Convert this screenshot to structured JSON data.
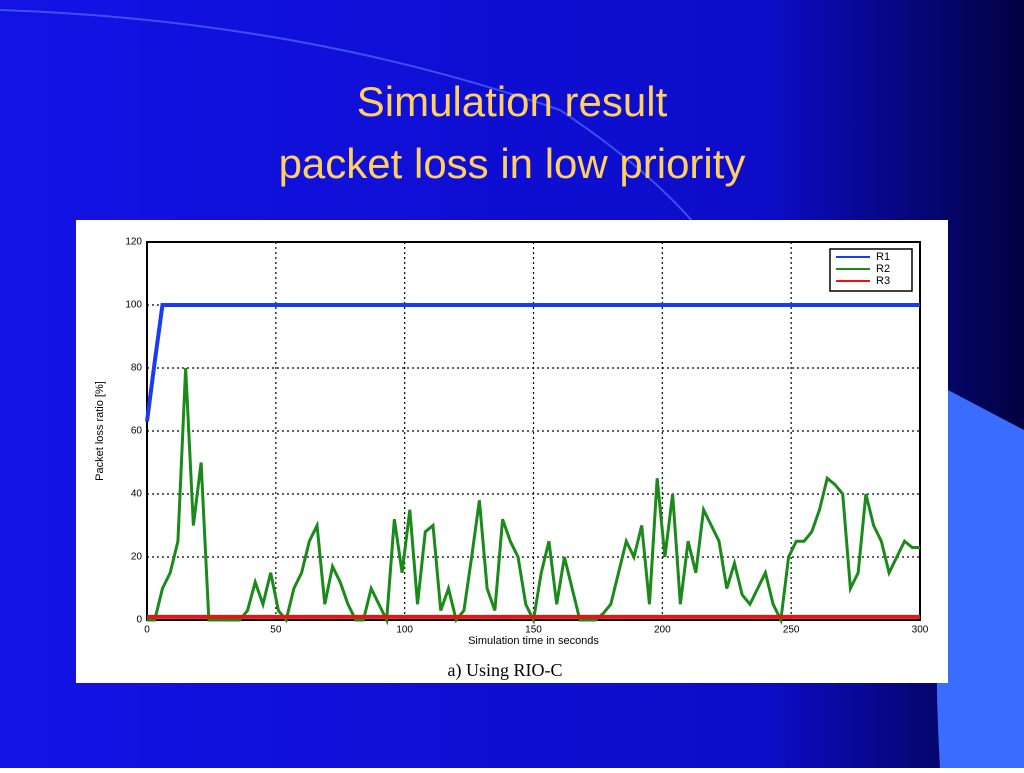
{
  "chart_data": {
    "type": "line",
    "title": "Simulation result",
    "subtitle": "packet loss in low priority",
    "caption": "a) Using RIO-C",
    "x_label": "Simulation time in seconds",
    "y_label": "Packet loss ratio [%]",
    "xlim": [
      0,
      300
    ],
    "ylim": [
      0,
      120
    ],
    "xticks": [
      0,
      50,
      100,
      150,
      200,
      250,
      300
    ],
    "yticks": [
      0,
      20,
      40,
      60,
      80,
      100,
      120
    ],
    "grid": true,
    "legend": "upper right",
    "x": [
      0,
      3,
      6,
      9,
      12,
      15,
      18,
      21,
      24,
      27,
      30,
      33,
      36,
      39,
      42,
      45,
      48,
      51,
      54,
      57,
      60,
      63,
      66,
      69,
      72,
      75,
      78,
      81,
      84,
      87,
      90,
      93,
      96,
      99,
      102,
      105,
      108,
      111,
      114,
      117,
      120,
      123,
      126,
      129,
      132,
      135,
      138,
      141,
      144,
      147,
      150,
      153,
      156,
      159,
      162,
      165,
      168,
      171,
      174,
      177,
      180,
      183,
      186,
      189,
      192,
      195,
      198,
      201,
      204,
      207,
      210,
      213,
      216,
      219,
      222,
      225,
      228,
      231,
      234,
      237,
      240,
      243,
      246,
      249,
      252,
      255,
      258,
      261,
      264,
      267,
      270,
      273,
      276,
      279,
      282,
      285,
      288,
      291,
      294,
      297,
      300
    ],
    "series": [
      {
        "name": "R1",
        "color": "#1a3cf0",
        "values": [
          63,
          82,
          100,
          100,
          100,
          100,
          100,
          100,
          100,
          100,
          100,
          100,
          100,
          100,
          100,
          100,
          100,
          100,
          100,
          100,
          100,
          100,
          100,
          100,
          100,
          100,
          100,
          100,
          100,
          100,
          100,
          100,
          100,
          100,
          100,
          100,
          100,
          100,
          100,
          100,
          100,
          100,
          100,
          100,
          100,
          100,
          100,
          100,
          100,
          100,
          100,
          100,
          100,
          100,
          100,
          100,
          100,
          100,
          100,
          100,
          100,
          100,
          100,
          100,
          100,
          100,
          100,
          100,
          100,
          100,
          100,
          100,
          100,
          100,
          100,
          100,
          100,
          100,
          100,
          100,
          100,
          100,
          100,
          100,
          100,
          100,
          100,
          100,
          100,
          100,
          100,
          100,
          100,
          100,
          100,
          100,
          100,
          100,
          100,
          100,
          100
        ]
      },
      {
        "name": "R2",
        "color": "#1a8a1a",
        "values": [
          0,
          0,
          10,
          15,
          25,
          80,
          30,
          50,
          0,
          0,
          0,
          0,
          0,
          3,
          12,
          5,
          15,
          3,
          0,
          10,
          15,
          25,
          30,
          5,
          17,
          12,
          5,
          0,
          0,
          10,
          5,
          0,
          32,
          15,
          35,
          5,
          28,
          30,
          3,
          10,
          0,
          3,
          20,
          38,
          10,
          3,
          32,
          25,
          20,
          5,
          0,
          15,
          25,
          5,
          20,
          10,
          0,
          0,
          0,
          2,
          5,
          15,
          25,
          20,
          30,
          5,
          45,
          20,
          40,
          5,
          25,
          15,
          35,
          30,
          25,
          10,
          18,
          8,
          5,
          10,
          15,
          5,
          0,
          20,
          25,
          25,
          28,
          35,
          45,
          43,
          40,
          10,
          15,
          40,
          30,
          25,
          15,
          20,
          25,
          23,
          23
        ]
      },
      {
        "name": "R3",
        "color": "#ee1111",
        "values": [
          1,
          1,
          1,
          1,
          1,
          1,
          1,
          1,
          1,
          1,
          1,
          1,
          1,
          1,
          1,
          1,
          1,
          1,
          1,
          1,
          1,
          1,
          1,
          1,
          1,
          1,
          1,
          1,
          1,
          1,
          1,
          1,
          1,
          1,
          1,
          1,
          1,
          1,
          1,
          1,
          1,
          1,
          1,
          1,
          1,
          1,
          1,
          1,
          1,
          1,
          1,
          1,
          1,
          1,
          1,
          1,
          1,
          1,
          1,
          1,
          1,
          1,
          1,
          1,
          1,
          1,
          1,
          1,
          1,
          1,
          1,
          1,
          1,
          1,
          1,
          1,
          1,
          1,
          1,
          1,
          1,
          1,
          1,
          1,
          1,
          1,
          1,
          1,
          1,
          1,
          1,
          1,
          1,
          1,
          1,
          1,
          1,
          1,
          1,
          1,
          1
        ]
      }
    ]
  }
}
